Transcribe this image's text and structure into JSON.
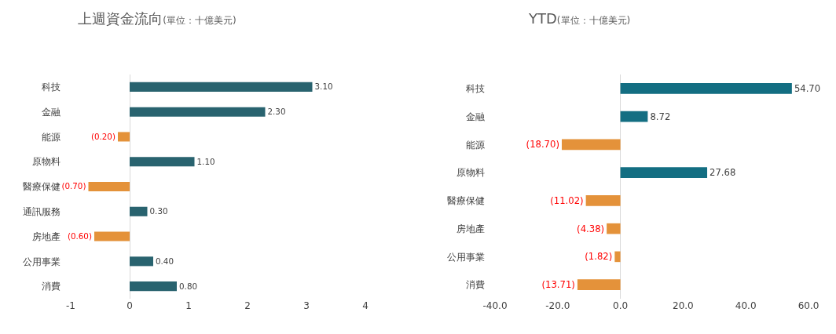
{
  "chart_data": [
    {
      "type": "bar",
      "orientation": "horizontal",
      "title": "上週資金流向",
      "subtitle": "(單位：十億美元)",
      "categories": [
        "科技",
        "金融",
        "能源",
        "原物料",
        "醫療保健",
        "通訊服務",
        "房地產",
        "公用事業",
        "消費"
      ],
      "values": [
        3.1,
        2.3,
        -0.2,
        1.1,
        -0.7,
        0.3,
        -0.6,
        0.4,
        0.8
      ],
      "value_labels": [
        "3.10",
        "2.30",
        "(0.20)",
        "1.10",
        "(0.70)",
        "0.30",
        "(0.60)",
        "0.40",
        "0.80"
      ],
      "colors": [
        "#29636f",
        "#29636f",
        "#e4923a",
        "#29636f",
        "#e4923a",
        "#29636f",
        "#e4923a",
        "#29636f",
        "#29636f"
      ],
      "xlim": [
        -1,
        4
      ],
      "xticks": [
        -1,
        0,
        1,
        2,
        3,
        4
      ]
    },
    {
      "type": "bar",
      "orientation": "horizontal",
      "title": "YTD",
      "subtitle": "(單位：十億美元)",
      "categories": [
        "科技",
        "金融",
        "能源",
        "原物料",
        "醫療保健",
        "房地產",
        "公用事業",
        "消費"
      ],
      "values": [
        54.7,
        8.72,
        -18.7,
        27.68,
        -11.02,
        -4.38,
        -1.82,
        -13.71
      ],
      "value_labels": [
        "54.70",
        "8.72",
        "(18.70)",
        "27.68",
        "(11.02)",
        "(4.38)",
        "(1.82)",
        "(13.71)"
      ],
      "colors": [
        "#136e82",
        "#136e82",
        "#e4923a",
        "#136e82",
        "#e4923a",
        "#e4923a",
        "#e4923a",
        "#e4923a"
      ],
      "xlim": [
        -40,
        60
      ],
      "xticks": [
        {
          "value": -40,
          "label": "-40.0"
        },
        {
          "value": -20,
          "label": "-20.0"
        },
        {
          "value": 0,
          "label": "0.0"
        },
        {
          "value": 20,
          "label": "20.0"
        },
        {
          "value": 40,
          "label": "40.0"
        },
        {
          "value": 60,
          "label": "60.0"
        }
      ]
    }
  ]
}
